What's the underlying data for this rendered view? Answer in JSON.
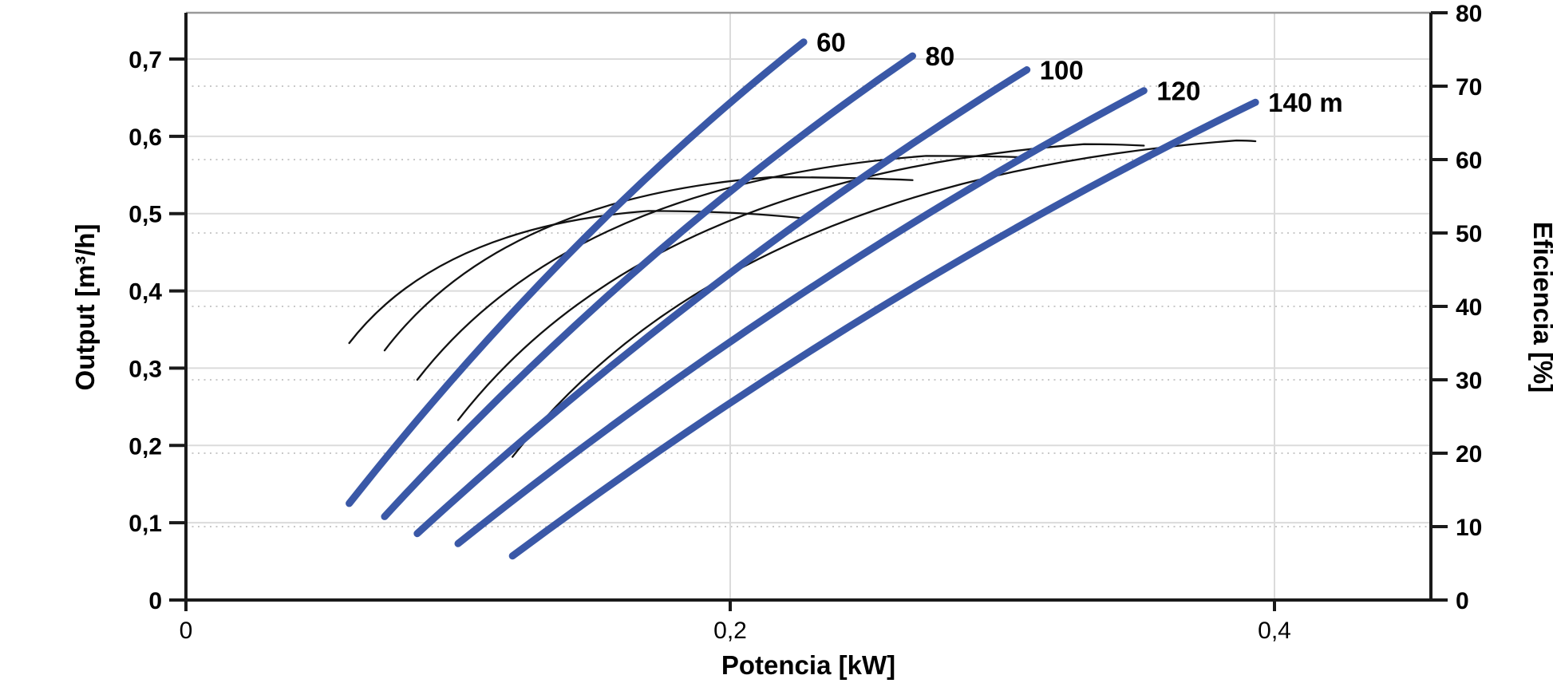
{
  "chart_data": {
    "type": "line",
    "title": "",
    "x_axis": {
      "label": "Potencia [kW]",
      "tick_labels": [
        "0",
        "0,2",
        "0,4"
      ],
      "tick_values": [
        0,
        0.2,
        0.4
      ],
      "range": [
        0,
        0.4575
      ],
      "gridline_values": [
        0.2,
        0.4
      ]
    },
    "y_axis_left": {
      "label": "Output [m³/h]",
      "tick_labels": [
        "0",
        "0,1",
        "0,2",
        "0,3",
        "0,4",
        "0,5",
        "0,6",
        "0,7"
      ],
      "tick_values": [
        0,
        0.1,
        0.2,
        0.3,
        0.4,
        0.5,
        0.6,
        0.7
      ],
      "range": [
        0,
        0.76
      ],
      "gridline_values": [
        0.1,
        0.2,
        0.3,
        0.4,
        0.5,
        0.6,
        0.7
      ],
      "gridline_style": "solid"
    },
    "y_axis_right": {
      "label": "Eficiencia [%]",
      "tick_labels": [
        "0",
        "10",
        "20",
        "30",
        "40",
        "50",
        "60",
        "70",
        "80"
      ],
      "tick_values": [
        0,
        10,
        20,
        30,
        40,
        50,
        60,
        70,
        80
      ],
      "range": [
        0,
        80
      ],
      "gridline_values": [
        10,
        20,
        30,
        40,
        50,
        60,
        70
      ],
      "gridline_style": "dotted"
    },
    "grid": "on",
    "legend_position": "none",
    "head_curves": [
      {
        "label": "60",
        "head_m": 60,
        "axis": "left",
        "points_kW_m3h": [
          [
            0.06,
            0.125
          ],
          [
            0.141,
            0.449
          ],
          [
            0.227,
            0.722
          ]
        ]
      },
      {
        "label": "80",
        "head_m": 80,
        "axis": "left",
        "points_kW_m3h": [
          [
            0.073,
            0.108
          ],
          [
            0.167,
            0.431
          ],
          [
            0.267,
            0.704
          ]
        ]
      },
      {
        "label": "100",
        "head_m": 100,
        "axis": "left",
        "points_kW_m3h": [
          [
            0.085,
            0.086
          ],
          [
            0.194,
            0.407
          ],
          [
            0.309,
            0.686
          ]
        ]
      },
      {
        "label": "120",
        "head_m": 120,
        "axis": "left",
        "points_kW_m3h": [
          [
            0.1,
            0.073
          ],
          [
            0.224,
            0.391
          ],
          [
            0.352,
            0.659
          ]
        ]
      },
      {
        "label": "140 m",
        "head_m": 140,
        "axis": "left",
        "points_kW_m3h": [
          [
            0.12,
            0.057
          ],
          [
            0.254,
            0.376
          ],
          [
            0.393,
            0.644
          ]
        ]
      }
    ],
    "efficiency_curves": [
      {
        "head_m": 60,
        "axis": "right",
        "points_kW_pct": [
          [
            0.06,
            35.0
          ],
          [
            0.17,
            53.0
          ],
          [
            0.227,
            52.0
          ]
        ]
      },
      {
        "head_m": 80,
        "axis": "right",
        "points_kW_pct": [
          [
            0.073,
            34.0
          ],
          [
            0.215,
            57.6
          ],
          [
            0.267,
            57.2
          ]
        ]
      },
      {
        "head_m": 100,
        "axis": "right",
        "points_kW_pct": [
          [
            0.085,
            30.0
          ],
          [
            0.272,
            60.5
          ],
          [
            0.309,
            60.3
          ]
        ]
      },
      {
        "head_m": 120,
        "axis": "right",
        "points_kW_pct": [
          [
            0.1,
            24.5
          ],
          [
            0.33,
            62.1
          ],
          [
            0.352,
            61.9
          ]
        ]
      },
      {
        "head_m": 140,
        "axis": "right",
        "points_kW_pct": [
          [
            0.12,
            19.5
          ],
          [
            0.386,
            62.6
          ],
          [
            0.393,
            62.5
          ]
        ]
      }
    ],
    "colors": {
      "head_curve": "#3A58A7",
      "efficiency_curve": "#121212",
      "grid_solid": "#DBDBDB",
      "grid_dotted": "#C9C9C9",
      "axis": "#1A1A1A",
      "frame_top": "#9A9A9A",
      "background": "#FFFFFF",
      "text": "#000000"
    }
  }
}
